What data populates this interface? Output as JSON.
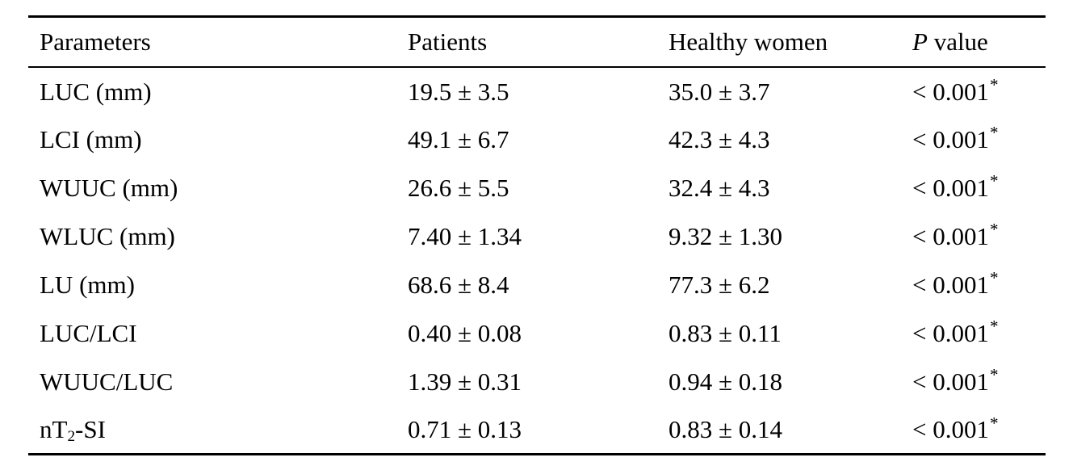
{
  "table": {
    "header": {
      "parameters": "Parameters",
      "patients": "Patients",
      "healthy_women": "Healthy women",
      "p_value_symbol": "P",
      "p_value_rest": " value"
    },
    "rows": [
      {
        "parameter_pre": "LUC (mm)",
        "patients": "19.5 ± 3.5",
        "healthy_women": "35.0 ± 3.7",
        "p": "< 0.001",
        "p_star": "*"
      },
      {
        "parameter_pre": "LCI (mm)",
        "patients": "49.1 ± 6.7",
        "healthy_women": "42.3 ± 4.3",
        "p": "< 0.001",
        "p_star": "*"
      },
      {
        "parameter_pre": "WUUC (mm)",
        "patients": "26.6 ± 5.5",
        "healthy_women": "32.4 ± 4.3",
        "p": "< 0.001",
        "p_star": "*"
      },
      {
        "parameter_pre": "WLUC (mm)",
        "patients": "7.40 ± 1.34",
        "healthy_women": "9.32 ± 1.30",
        "p": "< 0.001",
        "p_star": "*"
      },
      {
        "parameter_pre": "LU (mm)",
        "patients": "68.6 ± 8.4",
        "healthy_women": "77.3 ± 6.2",
        "p": "< 0.001",
        "p_star": "*"
      },
      {
        "parameter_pre": "LUC/LCI",
        "patients": "0.40 ± 0.08",
        "healthy_women": "0.83 ± 0.11",
        "p": "< 0.001",
        "p_star": "*"
      },
      {
        "parameter_pre": "WUUC/LUC",
        "patients": "1.39 ± 0.31",
        "healthy_women": "0.94 ± 0.18",
        "p": "< 0.001",
        "p_star": "*"
      },
      {
        "parameter_pre": "nT",
        "parameter_sub": "2",
        "parameter_post": "-SI",
        "patients": "0.71 ± 0.13",
        "healthy_women": "0.83 ± 0.14",
        "p": "< 0.001",
        "p_star": "*"
      }
    ],
    "colors": {
      "text": "#000000",
      "background": "#ffffff",
      "rule": "#000000"
    }
  }
}
